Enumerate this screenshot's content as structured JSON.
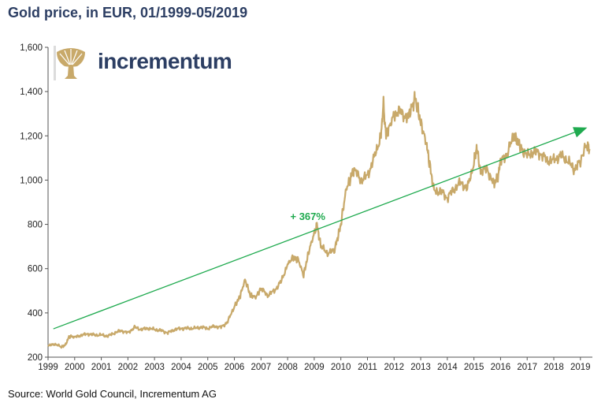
{
  "title": "Gold price, in EUR, 01/1999-05/2019",
  "source": "Source: World Gold Council, Incrementum AG",
  "logo": {
    "name": "incrementum",
    "icon": "tree-logo-icon"
  },
  "colors": {
    "gold_line": "#c8a96a",
    "trend": "#1faa4f",
    "title": "#2c3e63"
  },
  "chart_data": {
    "type": "line",
    "title": "Gold price, in EUR, 01/1999-05/2019",
    "xlabel": "",
    "ylabel": "",
    "xlim": [
      1999,
      2019.45
    ],
    "ylim": [
      200,
      1600
    ],
    "x_ticks": [
      "1999",
      "2000",
      "2001",
      "2002",
      "2003",
      "2004",
      "2005",
      "2006",
      "2007",
      "2008",
      "2009",
      "2010",
      "2011",
      "2012",
      "2013",
      "2014",
      "2015",
      "2016",
      "2017",
      "2018",
      "2019"
    ],
    "y_ticks": [
      "200",
      "400",
      "600",
      "800",
      "1,000",
      "1,200",
      "1,400",
      "1,600"
    ],
    "grid": false,
    "series": [
      {
        "name": "",
        "x": [
          1999.0,
          1999.25,
          1999.5,
          1999.65,
          1999.8,
          2000.0,
          2000.25,
          2000.5,
          2000.75,
          2001.0,
          2001.25,
          2001.5,
          2001.75,
          2002.0,
          2002.25,
          2002.5,
          2002.75,
          2003.0,
          2003.25,
          2003.5,
          2003.75,
          2004.0,
          2004.25,
          2004.5,
          2004.75,
          2005.0,
          2005.25,
          2005.5,
          2005.75,
          2006.0,
          2006.2,
          2006.4,
          2006.6,
          2006.8,
          2007.0,
          2007.25,
          2007.5,
          2007.75,
          2008.0,
          2008.2,
          2008.4,
          2008.6,
          2008.8,
          2009.0,
          2009.1,
          2009.25,
          2009.5,
          2009.75,
          2009.9,
          2010.0,
          2010.2,
          2010.4,
          2010.5,
          2010.75,
          2011.0,
          2011.25,
          2011.5,
          2011.6,
          2011.7,
          2011.8,
          2012.0,
          2012.25,
          2012.5,
          2012.7,
          2012.8,
          2013.0,
          2013.2,
          2013.3,
          2013.5,
          2013.75,
          2014.0,
          2014.25,
          2014.5,
          2014.75,
          2015.0,
          2015.1,
          2015.25,
          2015.5,
          2015.75,
          2015.9,
          2016.0,
          2016.25,
          2016.5,
          2016.6,
          2016.75,
          2017.0,
          2017.25,
          2017.5,
          2017.75,
          2018.0,
          2018.25,
          2018.5,
          2018.75,
          2019.0,
          2019.2,
          2019.35
        ],
        "values": [
          250,
          260,
          245,
          255,
          295,
          290,
          300,
          305,
          300,
          300,
          295,
          310,
          320,
          310,
          335,
          325,
          330,
          325,
          320,
          310,
          325,
          330,
          330,
          330,
          335,
          330,
          340,
          335,
          360,
          430,
          470,
          550,
          480,
          470,
          510,
          480,
          500,
          540,
          620,
          650,
          640,
          570,
          680,
          760,
          800,
          700,
          670,
          680,
          750,
          800,
          960,
          1020,
          1050,
          1000,
          1020,
          1100,
          1200,
          1340,
          1200,
          1230,
          1300,
          1310,
          1280,
          1340,
          1370,
          1260,
          1170,
          1100,
          950,
          950,
          920,
          960,
          990,
          960,
          1080,
          1150,
          1040,
          1050,
          980,
          1020,
          1080,
          1120,
          1200,
          1180,
          1150,
          1110,
          1130,
          1120,
          1090,
          1090,
          1110,
          1090,
          1050,
          1080,
          1160,
          1140
        ]
      }
    ],
    "trend": {
      "x": [
        1999.2,
        2019.2
      ],
      "values": [
        328,
        1235
      ]
    },
    "annotations": [
      {
        "text": "+ 367%",
        "x": 2008.1,
        "y": 820
      }
    ]
  }
}
